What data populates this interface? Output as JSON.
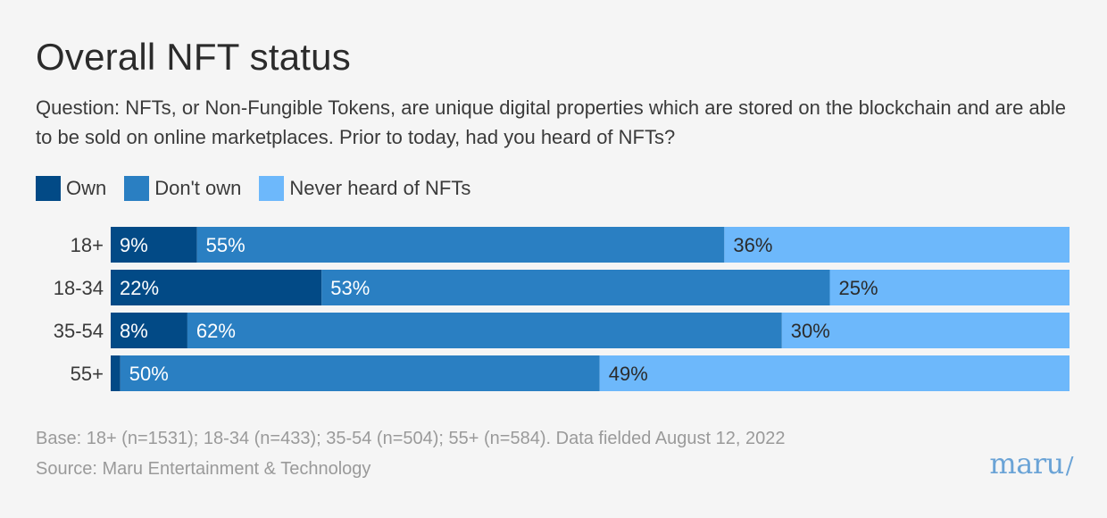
{
  "chart_data": {
    "type": "bar",
    "orientation": "horizontal",
    "stacked": true,
    "title": "Overall NFT status",
    "subtitle": "Question: NFTs, or Non-Fungible Tokens, are unique digital properties which are stored on the blockchain and are able to be sold on online marketplaces. Prior to today, had you heard of NFTs?",
    "categories": [
      "18+",
      "18-34",
      "35-54",
      "55+"
    ],
    "series": [
      {
        "name": "Own",
        "color": "#024a86",
        "values": [
          9,
          22,
          8,
          1
        ],
        "labels": [
          "9%",
          "22%",
          "8%",
          ""
        ]
      },
      {
        "name": "Don't own",
        "color": "#2a7fc2",
        "values": [
          55,
          53,
          62,
          50
        ],
        "labels": [
          "55%",
          "53%",
          "62%",
          "50%"
        ]
      },
      {
        "name": "Never heard of NFTs",
        "color": "#6db8fb",
        "values": [
          36,
          25,
          30,
          49
        ],
        "labels": [
          "36%",
          "25%",
          "30%",
          "49%"
        ]
      }
    ],
    "xlim": [
      0,
      100
    ],
    "legend_position": "top-left",
    "grid": false
  },
  "footer": {
    "base": "Base: 18+ (n=1531); 18-34 (n=433); 35-54 (n=504); 55+ (n=584). Data fielded August 12, 2022",
    "source": "Source: Maru Entertainment & Technology"
  },
  "logo": {
    "text": "maru",
    "mark": "/"
  }
}
